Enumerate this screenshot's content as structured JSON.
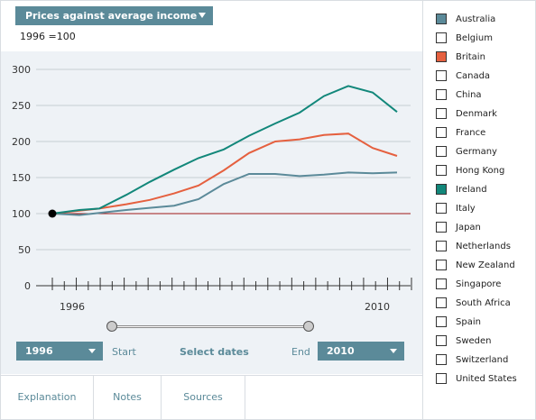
{
  "header": {
    "dropdown_label": "Prices against average income",
    "subtitle": "1996 =100"
  },
  "controls": {
    "start_year": "1996",
    "start_label": "Start",
    "select_label": "Select dates",
    "end_label": "End",
    "end_year": "2010"
  },
  "tabs": [
    "Explanation",
    "Notes",
    "Sources"
  ],
  "legend": [
    {
      "name": "Australia",
      "checked": true,
      "color": "#5b8a99"
    },
    {
      "name": "Belgium",
      "checked": false,
      "color": ""
    },
    {
      "name": "Britain",
      "checked": true,
      "color": "#e5603f"
    },
    {
      "name": "Canada",
      "checked": false,
      "color": ""
    },
    {
      "name": "China",
      "checked": false,
      "color": ""
    },
    {
      "name": "Denmark",
      "checked": false,
      "color": ""
    },
    {
      "name": "France",
      "checked": false,
      "color": ""
    },
    {
      "name": "Germany",
      "checked": false,
      "color": ""
    },
    {
      "name": "Hong Kong",
      "checked": false,
      "color": ""
    },
    {
      "name": "Ireland",
      "checked": true,
      "color": "#12877a"
    },
    {
      "name": "Italy",
      "checked": false,
      "color": ""
    },
    {
      "name": "Japan",
      "checked": false,
      "color": ""
    },
    {
      "name": "Netherlands",
      "checked": false,
      "color": ""
    },
    {
      "name": "New Zealand",
      "checked": false,
      "color": ""
    },
    {
      "name": "Singapore",
      "checked": false,
      "color": ""
    },
    {
      "name": "South Africa",
      "checked": false,
      "color": ""
    },
    {
      "name": "Spain",
      "checked": false,
      "color": ""
    },
    {
      "name": "Sweden",
      "checked": false,
      "color": ""
    },
    {
      "name": "Switzerland",
      "checked": false,
      "color": ""
    },
    {
      "name": "United States",
      "checked": false,
      "color": ""
    }
  ],
  "chart_data": {
    "type": "line",
    "title": "Prices against average income",
    "subtitle": "1996 =100",
    "x_start": 1996,
    "x_end": 2010,
    "x_tick_labels": [
      "1996",
      "2010"
    ],
    "ylim": [
      0,
      300
    ],
    "yticks": [
      0,
      50,
      100,
      150,
      200,
      250,
      300
    ],
    "baseline": 100,
    "baseline_color": "#a01818",
    "grid": true,
    "x": [
      1996,
      1996.75,
      1997.5,
      1998.5,
      1999.5,
      2000.5,
      2001.5,
      2002.5,
      2003.5,
      2004.5,
      2005.5,
      2006.5,
      2007.5,
      2008.5,
      2009.5,
      2010.5
    ],
    "series": [
      {
        "name": "Australia",
        "color": "#5b8a99",
        "values": [
          100,
          98,
          101,
          105,
          108,
          111,
          120,
          141,
          155,
          155,
          152,
          154,
          157,
          156,
          157,
          null
        ]
      },
      {
        "name": "Britain",
        "color": "#e5603f",
        "values": [
          100,
          104,
          107,
          113,
          119,
          128,
          139,
          160,
          184,
          200,
          203,
          209,
          211,
          191,
          180,
          null
        ]
      },
      {
        "name": "Ireland",
        "color": "#12877a",
        "values": [
          100,
          105,
          107,
          126,
          144,
          161,
          177,
          189,
          208,
          225,
          240,
          263,
          277,
          268,
          241,
          null
        ]
      }
    ],
    "start_marker": {
      "x": 1996,
      "y": 100
    }
  }
}
